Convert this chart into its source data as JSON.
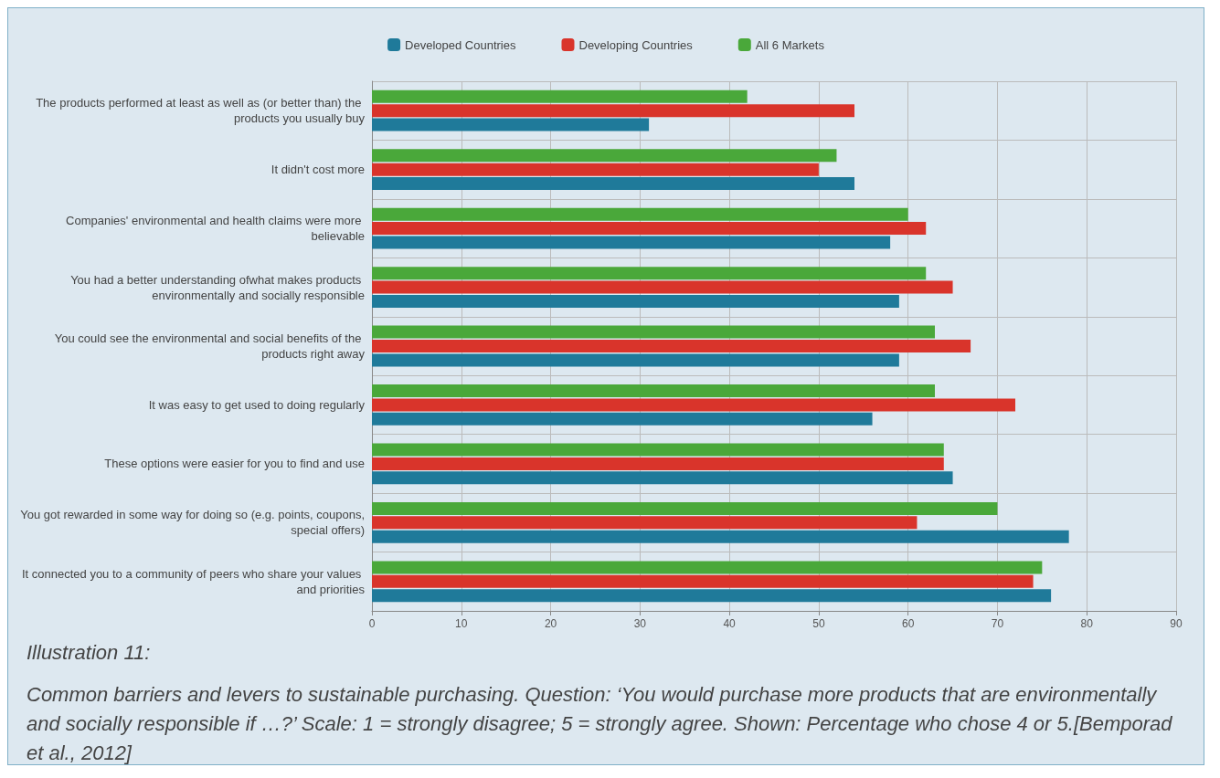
{
  "chart_data": {
    "type": "bar",
    "orientation": "horizontal",
    "categories": [
      "The products performed at least as well as (or better than) the products you usually buy",
      "It didn't cost more",
      "Companies' environmental and health claims were more believable",
      "You had a better understanding ofwhat makes products environmentally and socially responsible",
      "You could see the environmental and social benefits of the products right away",
      "It was easy to get used to doing regularly",
      "These options were easier for you to find and use",
      "You got rewarded in some way for doing so (e.g. points, coupons, special offers)",
      "It connected you to a community of peers who share your values and priorities"
    ],
    "series": [
      {
        "name": "Developed Countries",
        "color": "#1f7a9a",
        "values": [
          31,
          54,
          58,
          59,
          59,
          56,
          65,
          78,
          76
        ]
      },
      {
        "name": "Developing Countries",
        "color": "#d9342b",
        "values": [
          54,
          50,
          62,
          65,
          67,
          72,
          64,
          61,
          74
        ]
      },
      {
        "name": "All 6 Markets",
        "color": "#4aa83a",
        "values": [
          42,
          52,
          60,
          62,
          63,
          63,
          64,
          70,
          75
        ]
      }
    ],
    "xlim": [
      0,
      90
    ],
    "xticks": [
      0,
      10,
      20,
      30,
      40,
      50,
      60,
      70,
      80,
      90
    ],
    "grid": true,
    "legend": "top",
    "annotations": [
      "Illustration 11:",
      "Common barriers and levers to sustainable purchasing. Question: ‘You would purchase more products that are environmentally and socially responsible if …?’ Scale: 1 = strongly disagree; 5 = strongly agree. Shown: Percentage who chose 4 or 5.[Bemporad et al., 2012]"
    ]
  }
}
